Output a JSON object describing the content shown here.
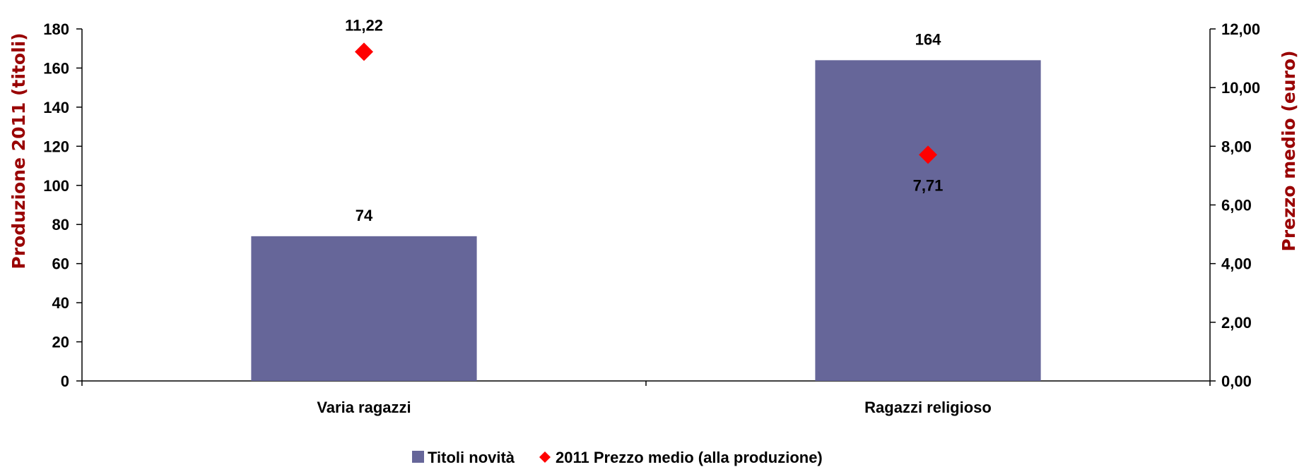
{
  "chart_data": {
    "type": "bar",
    "categories": [
      "Varia ragazzi",
      "Ragazzi religioso"
    ],
    "series": [
      {
        "name": "Titoli novità",
        "kind": "bar",
        "axis": "left",
        "values": [
          74,
          164
        ],
        "labels": [
          "74",
          "164"
        ],
        "color": "#666699"
      },
      {
        "name": "2011 Prezzo medio (alla produzione)",
        "kind": "marker",
        "marker": "diamond",
        "axis": "right",
        "values": [
          11.22,
          7.71
        ],
        "labels": [
          "11,22",
          "7,71"
        ],
        "color": "#ff0000"
      }
    ],
    "ylabel": "Produzione 2011 (titoli)",
    "ylabel_right": "Prezzo medio (euro)",
    "axis_title_color": "#990000",
    "ylim": [
      0,
      180
    ],
    "yticks": [
      "0",
      "20",
      "40",
      "60",
      "80",
      "100",
      "120",
      "140",
      "160",
      "180"
    ],
    "ylim_right": [
      0,
      12
    ],
    "yticks_right": [
      "0,00",
      "2,00",
      "4,00",
      "6,00",
      "8,00",
      "10,00",
      "12,00"
    ],
    "grid": false,
    "legend_position": "bottom"
  }
}
